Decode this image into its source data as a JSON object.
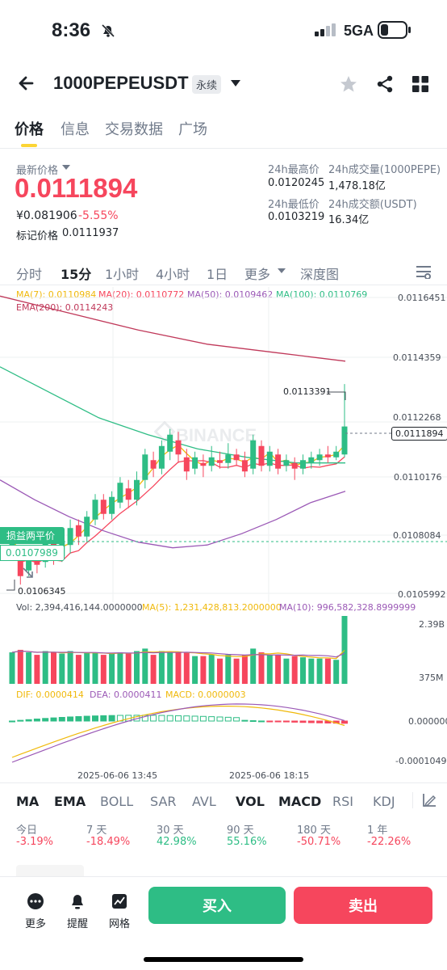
{
  "status": {
    "time": "8:36",
    "network": "5GA"
  },
  "header": {
    "symbol": "1000PEPEUSDT",
    "badge": "永续"
  },
  "tabs": [
    "价格",
    "信息",
    "交易数据",
    "广场"
  ],
  "price": {
    "latest_label": "最新价格",
    "last": "0.0111894",
    "cny": "¥0.081906",
    "change": "-5.55%",
    "mark_label": "标记价格",
    "mark": "0.0111937"
  },
  "stats": {
    "high_label": "24h最高价",
    "high": "0.0120245",
    "vol_label": "24h成交量(1000PEPE)",
    "vol": "1,478.18亿",
    "low_label": "24h最低价",
    "low": "0.0103219",
    "amt_label": "24h成交额(USDT)",
    "amt": "16.34亿"
  },
  "intervals": [
    "分时",
    "15分",
    "1小时",
    "4小时",
    "1日",
    "更多",
    "深度图"
  ],
  "ma_legend": {
    "ma7": "MA(7): 0.0110984",
    "ma20": "MA(20): 0.0110772",
    "ma50": "MA(50): 0.0109462",
    "ma100": "MA(100): 0.0110769",
    "ema200": "EMA(200): 0.0114243"
  },
  "price_axis": [
    "0.0116451",
    "0.0114359",
    "0.0112268",
    "0.0110176",
    "0.0108084",
    "0.0105992"
  ],
  "annotations": {
    "high": "0.0113391",
    "current": "0.0111894",
    "low": "0.0106345",
    "breakeven_label": "损益两平价",
    "breakeven": "0.0107989"
  },
  "watermark": "BINANCE",
  "volume": {
    "vol": "Vol: 2,394,416,144.0000000",
    "ma5": "MA(5): 1,231,428,813.2000000",
    "ma10": "MA(10): 996,582,328.8999999",
    "axis": [
      "2.39B",
      "375M"
    ]
  },
  "macd": {
    "dif": "DIF: 0.0000414",
    "dea": "DEA: 0.0000411",
    "macd": "MACD: 0.0000003",
    "axis": [
      "0.0000000",
      "-0.0001049"
    ]
  },
  "time_axis": [
    "2025-06-06 13:45",
    "2025-06-06 18:15"
  ],
  "indicators": [
    "MA",
    "EMA",
    "BOLL",
    "SAR",
    "AVL",
    "VOL",
    "MACD",
    "RSI",
    "KDJ"
  ],
  "performance": [
    {
      "label": "今日",
      "value": "-3.19%"
    },
    {
      "label": "7 天",
      "value": "-18.49%"
    },
    {
      "label": "30 天",
      "value": "42.98%"
    },
    {
      "label": "90 天",
      "value": "55.16%"
    },
    {
      "label": "180 天",
      "value": "-50.71%"
    },
    {
      "label": "1 年",
      "value": "-22.26%"
    }
  ],
  "bottom": {
    "more": "更多",
    "alert": "提醒",
    "grid": "网格",
    "buy": "买入",
    "sell": "卖出"
  },
  "colors": {
    "up": "#2ebd85",
    "down": "#f6465d",
    "accent": "#fcd535",
    "ma7": "#f0b90b",
    "ma20": "#f6465d",
    "ma50": "#9b59b6",
    "ma100": "#2ebd85",
    "ema200": "#c0395a"
  },
  "chart_data": {
    "type": "candlestick",
    "interval": "15分",
    "price_axis": [
      0.0116451,
      0.0114359,
      0.0112268,
      0.0110176,
      0.0108084,
      0.0105992
    ],
    "candles": [
      [
        0.01075,
        0.0108,
        0.01072,
        0.01083
      ],
      [
        0.01074,
        0.01066,
        0.01063,
        0.01076
      ],
      [
        0.01068,
        0.01075,
        0.01066,
        0.01077
      ],
      [
        0.01073,
        0.0107,
        0.01067,
        0.01076
      ],
      [
        0.01071,
        0.01079,
        0.01069,
        0.01081
      ],
      [
        0.01078,
        0.01072,
        0.0107,
        0.01081
      ],
      [
        0.01073,
        0.01078,
        0.01071,
        0.01081
      ],
      [
        0.01077,
        0.01083,
        0.01074,
        0.01086
      ],
      [
        0.01084,
        0.0108,
        0.01077,
        0.01086
      ],
      [
        0.0108,
        0.01087,
        0.01078,
        0.01089
      ],
      [
        0.01086,
        0.01093,
        0.01084,
        0.01095
      ],
      [
        0.01093,
        0.01088,
        0.01086,
        0.01095
      ],
      [
        0.01088,
        0.01094,
        0.01086,
        0.01096
      ],
      [
        0.01092,
        0.01099,
        0.0109,
        0.01101
      ],
      [
        0.01097,
        0.01093,
        0.0109,
        0.011
      ],
      [
        0.01093,
        0.011,
        0.01091,
        0.01103
      ],
      [
        0.011,
        0.01109,
        0.01097,
        0.01111
      ],
      [
        0.01107,
        0.01104,
        0.01101,
        0.0111
      ],
      [
        0.01104,
        0.01112,
        0.01102,
        0.01114
      ],
      [
        0.0111,
        0.01116,
        0.01107,
        0.01118
      ],
      [
        0.01114,
        0.01109,
        0.01106,
        0.01117
      ],
      [
        0.01108,
        0.01103,
        0.011,
        0.01111
      ],
      [
        0.01104,
        0.01108,
        0.01102,
        0.0111
      ],
      [
        0.01106,
        0.01105,
        0.01101,
        0.01109
      ],
      [
        0.01105,
        0.01108,
        0.01103,
        0.01112
      ],
      [
        0.01107,
        0.01106,
        0.01104,
        0.0111
      ],
      [
        0.01106,
        0.01109,
        0.01104,
        0.01113
      ],
      [
        0.01109,
        0.01107,
        0.01105,
        0.01111
      ],
      [
        0.01107,
        0.01103,
        0.01101,
        0.0111
      ],
      [
        0.01104,
        0.01114,
        0.01102,
        0.01116
      ],
      [
        0.01112,
        0.01105,
        0.01103,
        0.01114
      ],
      [
        0.01105,
        0.0111,
        0.01103,
        0.01112
      ],
      [
        0.01109,
        0.01104,
        0.01102,
        0.01111
      ],
      [
        0.01105,
        0.01107,
        0.01103,
        0.01109
      ],
      [
        0.01106,
        0.01104,
        0.011,
        0.01108
      ],
      [
        0.01104,
        0.01107,
        0.01102,
        0.01109
      ],
      [
        0.01106,
        0.01108,
        0.01104,
        0.0111
      ],
      [
        0.01107,
        0.01109,
        0.01105,
        0.01111
      ],
      [
        0.01109,
        0.01108,
        0.01106,
        0.01112
      ],
      [
        0.01108,
        0.0111,
        0.01107,
        0.01112
      ],
      [
        0.01109,
        0.011189,
        0.01108,
        0.011339
      ]
    ],
    "volume_series": [
      "MA(5)",
      "MA(10)"
    ],
    "macd_series": [
      "DIF",
      "DEA",
      "MACD"
    ]
  }
}
